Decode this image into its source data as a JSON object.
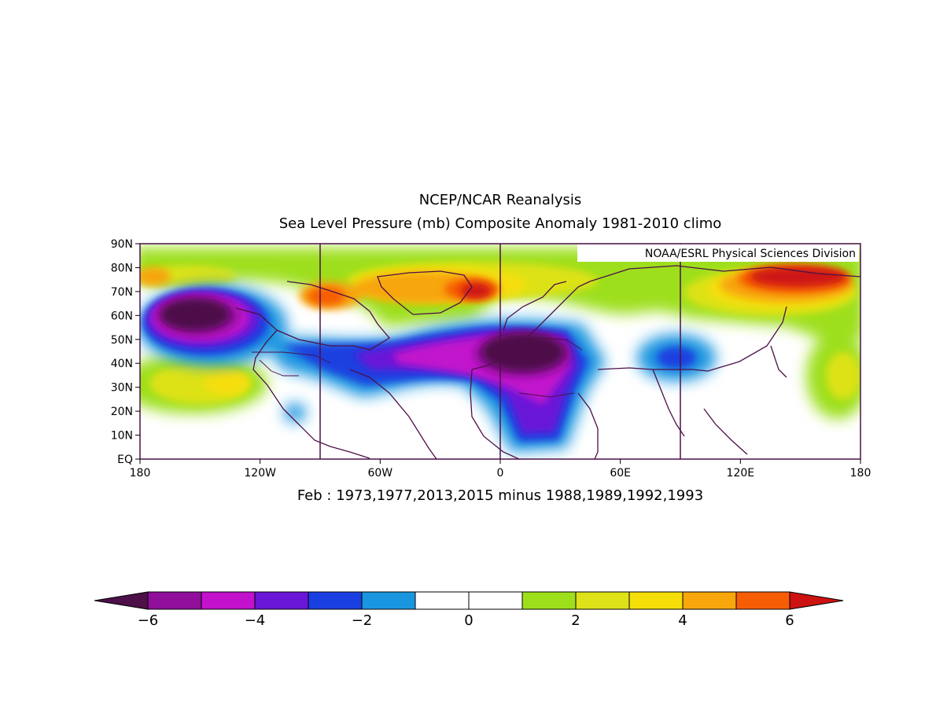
{
  "title": "NCEP/NCAR Reanalysis",
  "subtitle": "Sea Level Pressure (mb) Composite Anomaly 1981-2010 climo",
  "credit": "NOAA/ESRL Physical Sciences Division",
  "caption": "Feb : 1973,1977,2013,2015 minus 1988,1989,1992,1993",
  "map": {
    "lon_range": [
      -180,
      180
    ],
    "lat_range": [
      0,
      90
    ],
    "lat_ticks": [
      {
        "value": 90,
        "label": "90N"
      },
      {
        "value": 80,
        "label": "80N"
      },
      {
        "value": 70,
        "label": "70N"
      },
      {
        "value": 60,
        "label": "60N"
      },
      {
        "value": 50,
        "label": "50N"
      },
      {
        "value": 40,
        "label": "40N"
      },
      {
        "value": 30,
        "label": "30N"
      },
      {
        "value": 20,
        "label": "20N"
      },
      {
        "value": 10,
        "label": "10N"
      },
      {
        "value": 0,
        "label": "EQ"
      }
    ],
    "lon_ticks": [
      {
        "value": -180,
        "label": "180"
      },
      {
        "value": -120,
        "label": "120W"
      },
      {
        "value": -60,
        "label": "60W"
      },
      {
        "value": 0,
        "label": "0"
      },
      {
        "value": 60,
        "label": "60E"
      },
      {
        "value": 120,
        "label": "120E"
      },
      {
        "value": 180,
        "label": "180"
      }
    ],
    "meridian_lines": [
      -90,
      0,
      90
    ],
    "anomaly_features": [
      {
        "region": "North Pacific / Gulf of Alaska low",
        "lon": -150,
        "lat": 57,
        "value": -7
      },
      {
        "region": "North America – North Atlantic trough",
        "lon": -60,
        "lat": 42,
        "value": -4
      },
      {
        "region": "Europe / Mediterranean low",
        "lon": 10,
        "lat": 42,
        "value": -6.5
      },
      {
        "region": "Central Africa negative tongue",
        "lon": 25,
        "lat": 15,
        "value": -4
      },
      {
        "region": "Greenland / Arctic high",
        "lon": -20,
        "lat": 73,
        "value": 5.5
      },
      {
        "region": "East Siberian high",
        "lon": 140,
        "lat": 75,
        "value": 6.5
      },
      {
        "region": "Subtropical North Pacific high",
        "lon": -140,
        "lat": 32,
        "value": 3.5
      },
      {
        "region": "Central Asia negative anomaly",
        "lon": 100,
        "lat": 42,
        "value": -2
      }
    ]
  },
  "colorbar": {
    "colors": [
      "#4d1048",
      "#8f0f9a",
      "#c212cc",
      "#6a16d7",
      "#1a3fe0",
      "#1a96e0",
      "#ffffff",
      "#ffffff",
      "#9ddf1b",
      "#dde219",
      "#f6de09",
      "#f7a60b",
      "#f75d05",
      "#cd1212"
    ],
    "boundaries": [
      -6,
      -5,
      -4,
      -3,
      -2,
      -1,
      0,
      1,
      2,
      3,
      4,
      5,
      6
    ],
    "tick_labels": [
      {
        "value": -6,
        "label": "−6"
      },
      {
        "value": -4,
        "label": "−4"
      },
      {
        "value": -2,
        "label": "−2"
      },
      {
        "value": 0,
        "label": "0"
      },
      {
        "value": 2,
        "label": "2"
      },
      {
        "value": 4,
        "label": "4"
      },
      {
        "value": 6,
        "label": "6"
      }
    ]
  }
}
